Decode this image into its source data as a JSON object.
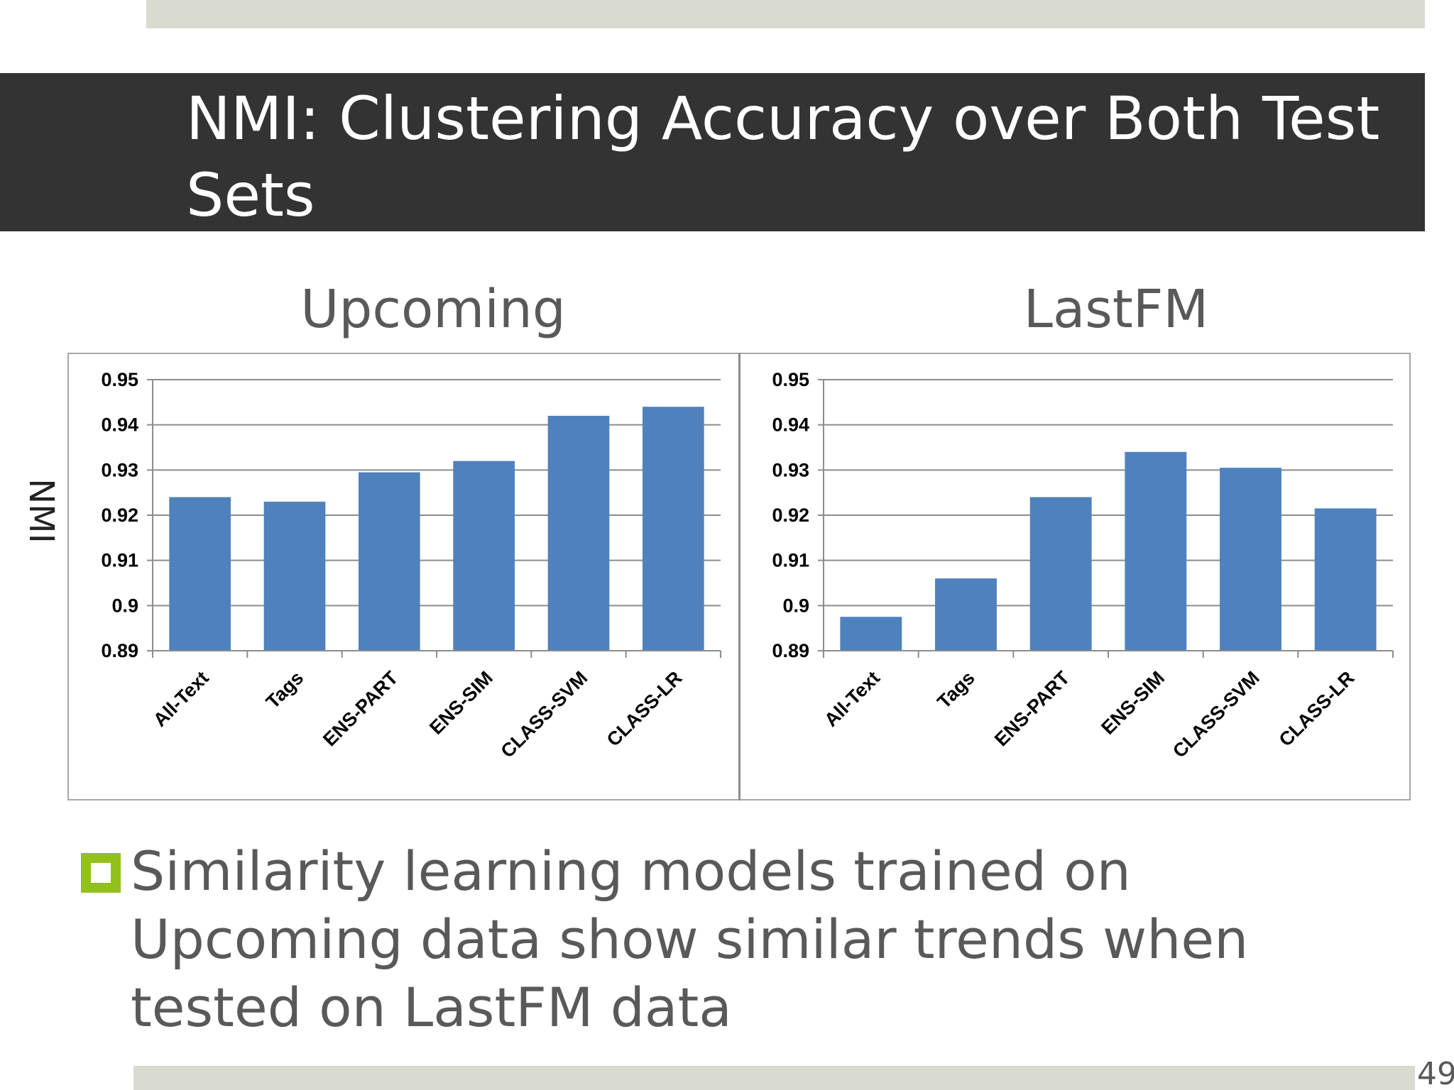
{
  "slide": {
    "title": "NMI: Clustering Accuracy over Both Test Sets",
    "y_axis_label": "NMI",
    "bullet": "Similarity learning models trained on Upcoming data show similar trends when tested on LastFM data",
    "page_number": "49",
    "colors": {
      "title_bar": "#333333",
      "accent_bars": "#d9dbd0",
      "bullet": "#92c11b",
      "bar_fill": "#4f81bd"
    }
  },
  "chart_data": [
    {
      "type": "bar",
      "title": "Upcoming",
      "ylabel": "",
      "xlabel": "",
      "categories": [
        "All-Text",
        "Tags",
        "ENS-PART",
        "ENS-SIM",
        "CLASS-SVM",
        "CLASS-LR"
      ],
      "values": [
        0.924,
        0.923,
        0.9295,
        0.932,
        0.942,
        0.944
      ],
      "ylim": [
        0.89,
        0.95
      ],
      "yticks": [
        "0.89",
        "0.9",
        "0.91",
        "0.92",
        "0.93",
        "0.94",
        "0.95"
      ],
      "grid": true,
      "legend": "none"
    },
    {
      "type": "bar",
      "title": "LastFM",
      "ylabel": "",
      "xlabel": "",
      "categories": [
        "All-Text",
        "Tags",
        "ENS-PART",
        "ENS-SIM",
        "CLASS-SVM",
        "CLASS-LR"
      ],
      "values": [
        0.8975,
        0.906,
        0.924,
        0.934,
        0.9305,
        0.9215
      ],
      "ylim": [
        0.89,
        0.95
      ],
      "yticks": [
        "0.89",
        "0.9",
        "0.91",
        "0.92",
        "0.93",
        "0.94",
        "0.95"
      ],
      "grid": true,
      "legend": "none"
    }
  ]
}
